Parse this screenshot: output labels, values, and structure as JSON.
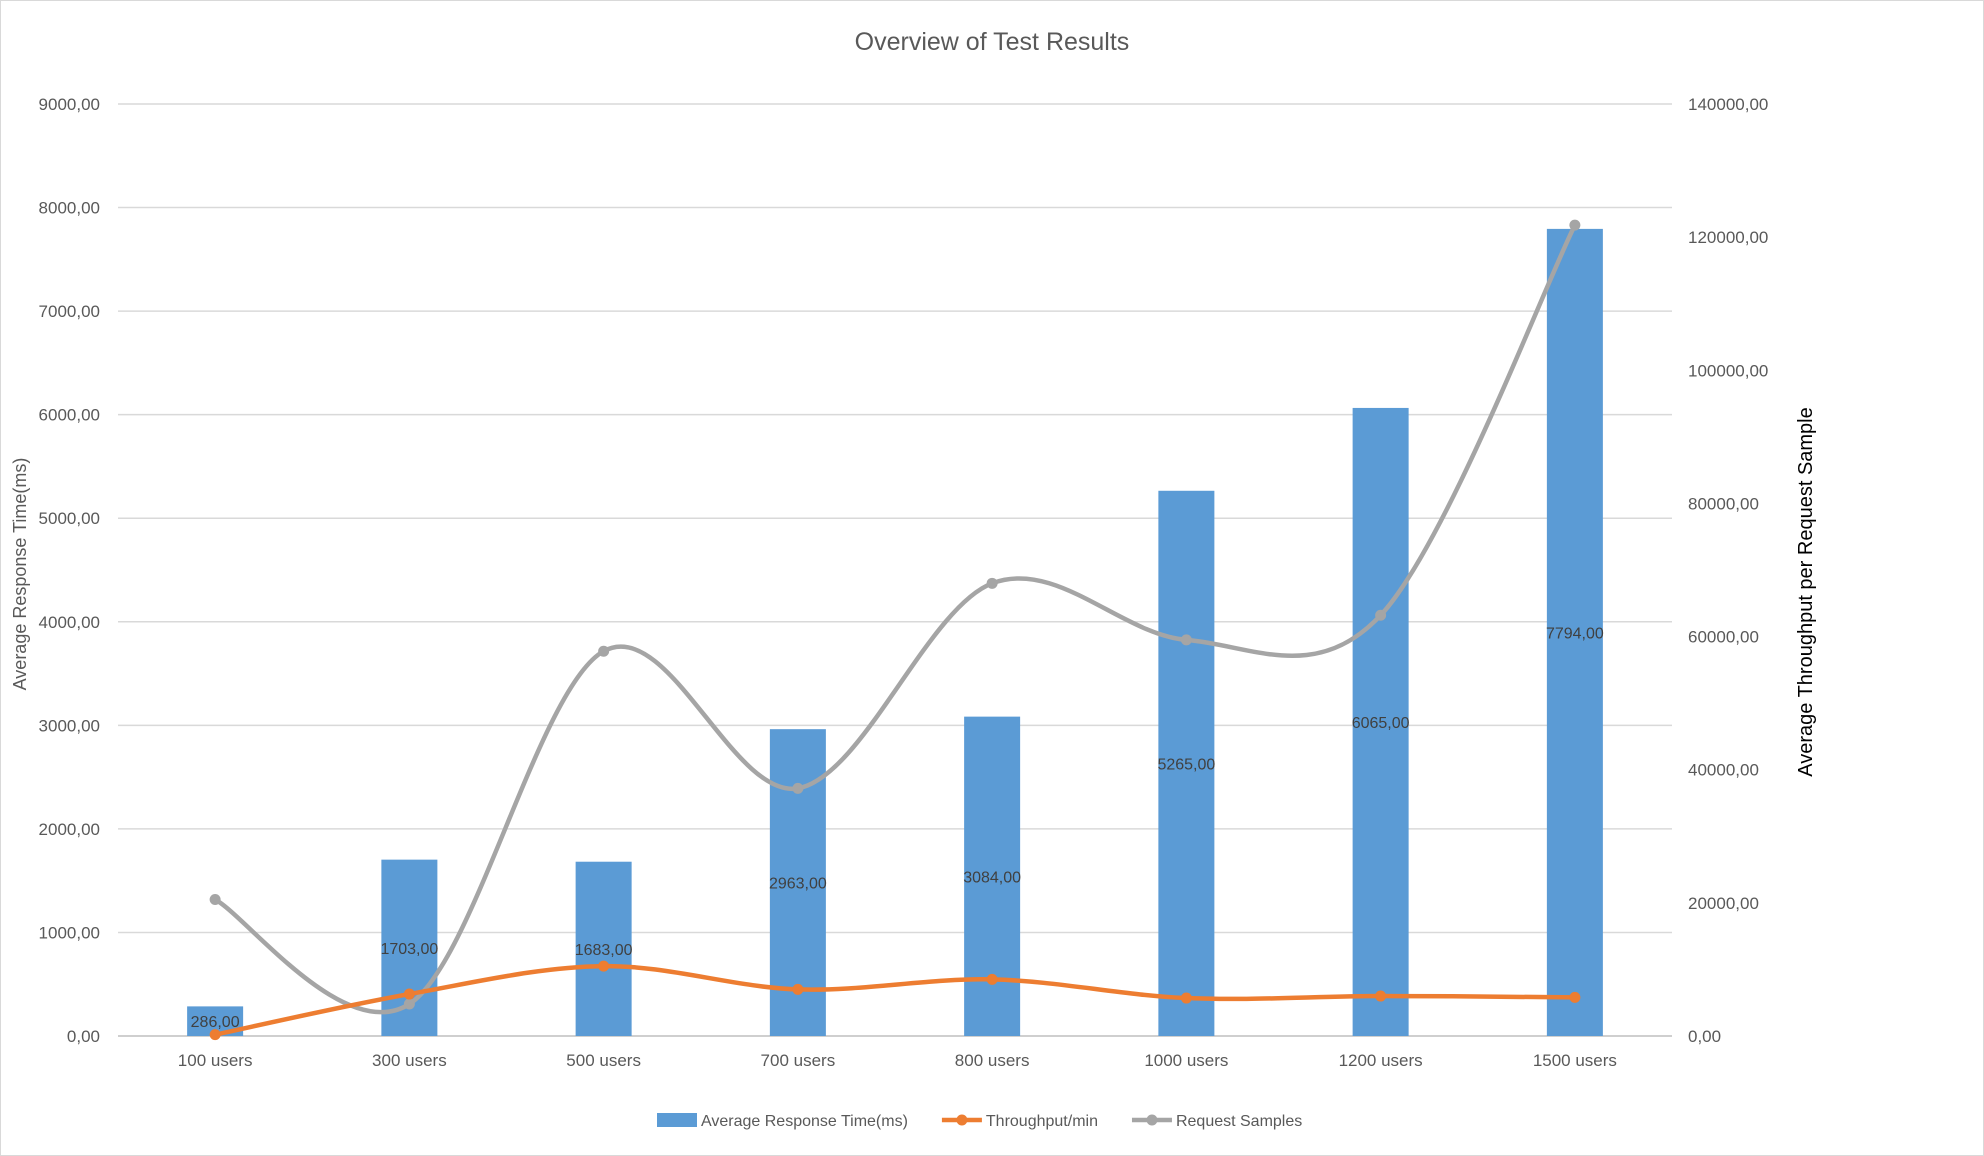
{
  "chart_data": {
    "type": "bar",
    "title": "Overview of Test Results",
    "categories": [
      "100 users",
      "300 users",
      "500 users",
      "700 users",
      "800 users",
      "1000 users",
      "1200 users",
      "1500 users"
    ],
    "ylabel": "Average Response Time(ms)",
    "y2label": "Average Throughput per Request Sample",
    "ylim": [
      0,
      9000
    ],
    "y2lim": [
      0,
      140000
    ],
    "yticks": [
      "0,00",
      "1000,00",
      "2000,00",
      "3000,00",
      "4000,00",
      "5000,00",
      "6000,00",
      "7000,00",
      "8000,00",
      "9000,00"
    ],
    "y2ticks": [
      "0,00",
      "20000,00",
      "40000,00",
      "60000,00",
      "80000,00",
      "100000,00",
      "120000,00",
      "140000,00"
    ],
    "grid": true,
    "legend_position": "bottom",
    "series": [
      {
        "name": "Average Response Time(ms)",
        "type": "bar",
        "axis": "left",
        "color": "#5b9bd5",
        "values": [
          286,
          1703,
          1683,
          2963,
          3084,
          5265,
          6065,
          7794
        ],
        "labels": [
          "286,00",
          "1703,00",
          "1683,00",
          "2963,00",
          "3084,00",
          "5265,00",
          "6065,00",
          "7794,00"
        ]
      },
      {
        "name": "Throughput/min",
        "type": "line",
        "axis": "right",
        "color": "#ed7d31",
        "values": [
          200,
          6300,
          10500,
          7000,
          8500,
          5700,
          6000,
          5800
        ]
      },
      {
        "name": "Request Samples",
        "type": "line",
        "axis": "right",
        "color": "#a5a5a5",
        "values": [
          20500,
          4800,
          57800,
          37200,
          68000,
          59500,
          63200,
          121800
        ]
      }
    ]
  }
}
